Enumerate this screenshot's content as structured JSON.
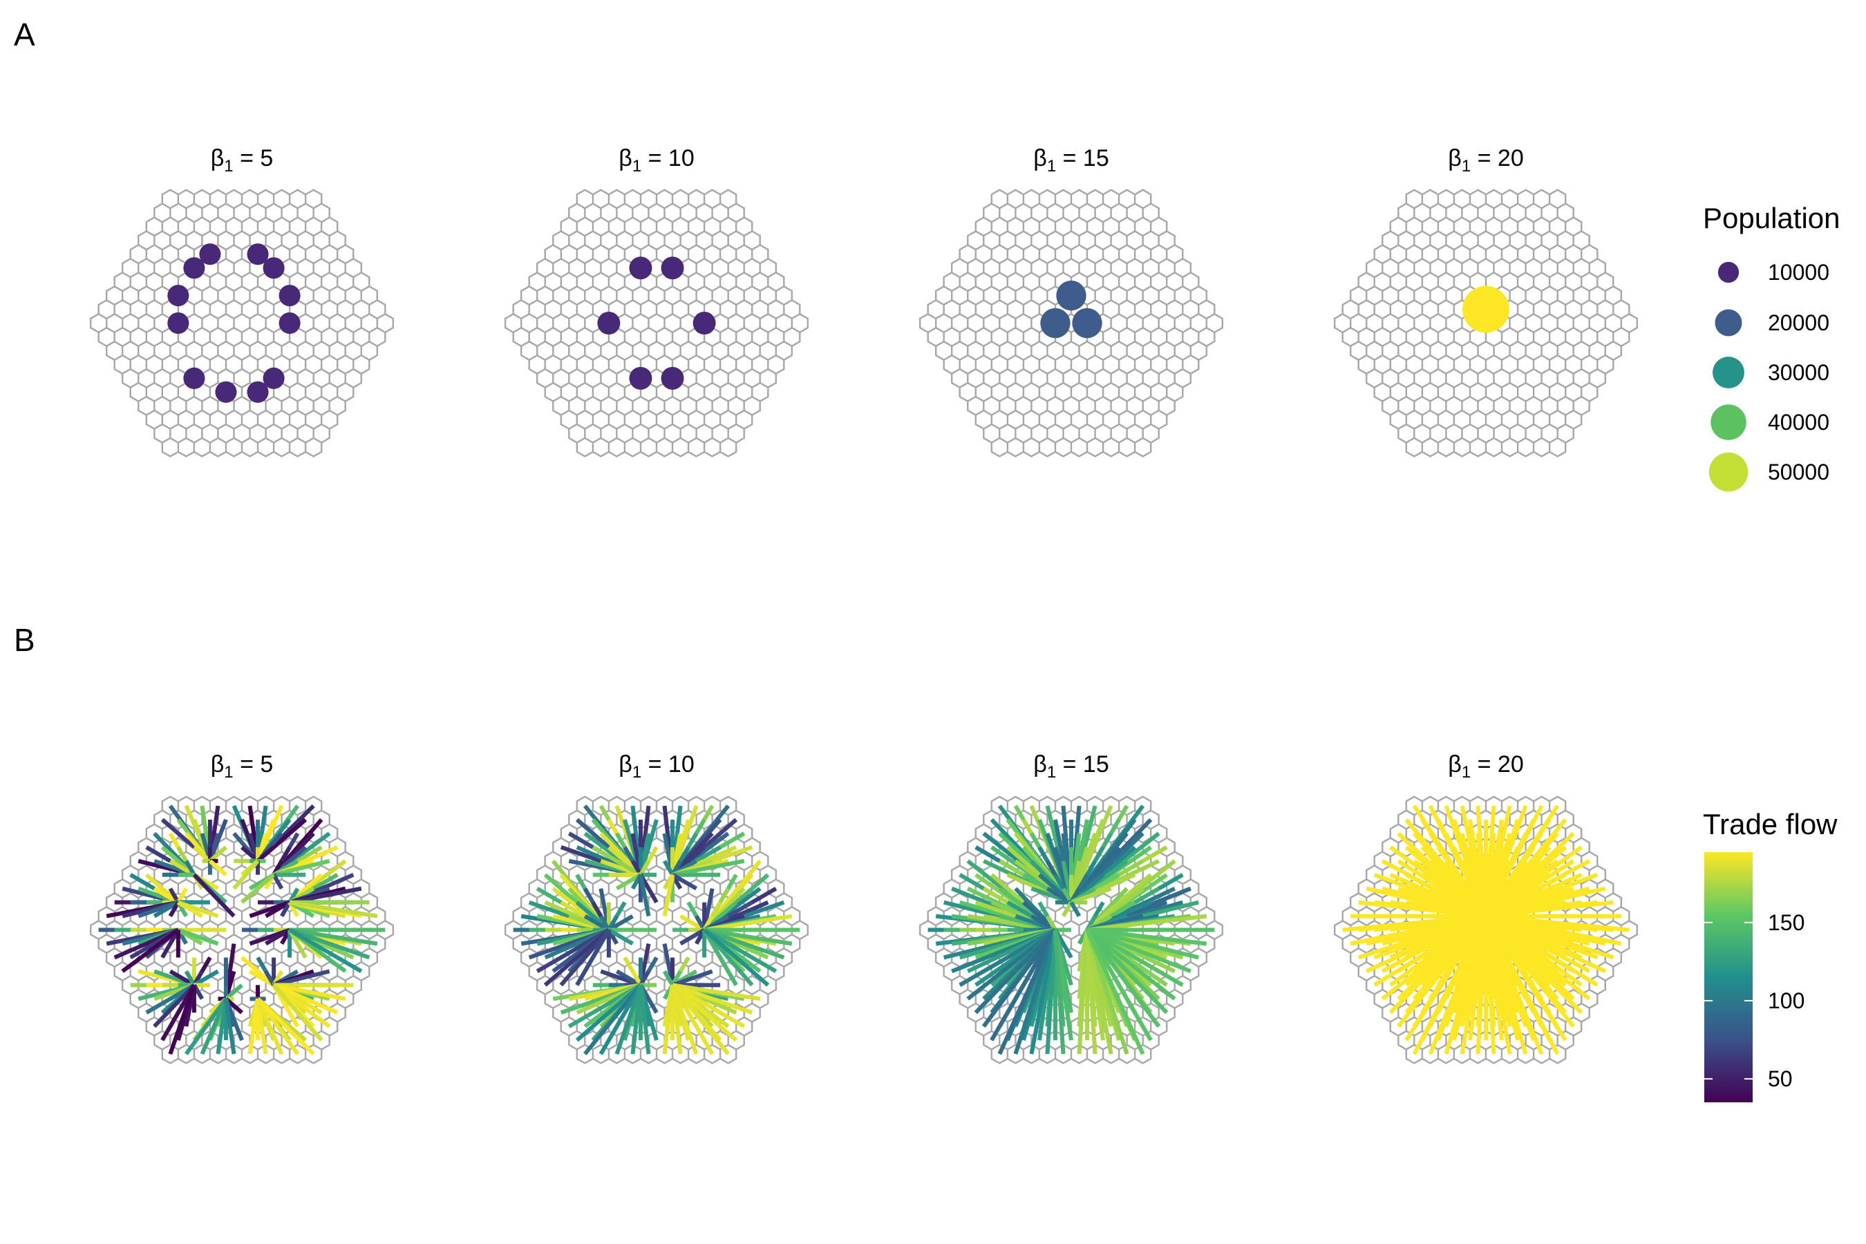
{
  "panels": [
    {
      "label": "A",
      "kind": "population"
    },
    {
      "label": "B",
      "kind": "trade"
    }
  ],
  "facets": [
    {
      "prefix": "β",
      "sub": "1",
      "eq": " = 5"
    },
    {
      "prefix": "β",
      "sub": "1",
      "eq": " = 10"
    },
    {
      "prefix": "β",
      "sub": "1",
      "eq": " = 15"
    },
    {
      "prefix": "β",
      "sub": "1",
      "eq": " = 20"
    }
  ],
  "legend_population": {
    "title": "Population",
    "entries": [
      {
        "label": "10000",
        "value": 10000,
        "color": "#482878"
      },
      {
        "label": "20000",
        "value": 20000,
        "color": "#3e5c8c"
      },
      {
        "label": "30000",
        "value": 30000,
        "color": "#26938a"
      },
      {
        "label": "40000",
        "value": 40000,
        "color": "#5cc15f"
      },
      {
        "label": "50000",
        "value": 50000,
        "color": "#c3de35"
      }
    ]
  },
  "legend_trade": {
    "title": "Trade flow",
    "ticks": [
      {
        "label": "150",
        "value": 150
      },
      {
        "label": "100",
        "value": 100
      },
      {
        "label": "50",
        "value": 50
      }
    ],
    "range": [
      35,
      195
    ],
    "colors": [
      "#440154",
      "#3b528b",
      "#21908d",
      "#5dc863",
      "#fde725"
    ]
  },
  "chart_data": [
    {
      "type": "scatter",
      "panel": "A",
      "grid": "hexagonal lattice, 10 hexes per side",
      "series": [
        {
          "facet": "β1 = 5",
          "population": 8000,
          "points": [
            [
              -2,
              -1
            ],
            [
              1,
              -1
            ],
            [
              -3,
              0
            ],
            [
              2,
              0
            ],
            [
              -4,
              2
            ],
            [
              3,
              2
            ],
            [
              -4,
              4
            ],
            [
              3,
              4
            ],
            [
              -3,
              8
            ],
            [
              2,
              8
            ],
            [
              -1,
              9
            ],
            [
              1,
              9
            ]
          ]
        },
        {
          "facet": "β1 = 10",
          "population": 9500,
          "points": [
            [
              -1,
              0
            ],
            [
              1,
              0
            ],
            [
              -3,
              4
            ],
            [
              3,
              4
            ],
            [
              -1,
              8
            ],
            [
              1,
              8
            ]
          ]
        },
        {
          "facet": "β1 = 15",
          "population": 20000,
          "points": [
            [
              0,
              2
            ],
            [
              -1,
              4
            ],
            [
              1,
              4
            ]
          ]
        },
        {
          "facet": "β1 = 20",
          "population": 60000,
          "points": [
            [
              0,
              3
            ]
          ]
        }
      ]
    },
    {
      "type": "heatmap",
      "panel": "B",
      "value_name": "Trade flow",
      "series": [
        {
          "facet": "β1 = 5",
          "hubs": [
            [
              -2,
              -1
            ],
            [
              1,
              -1
            ],
            [
              -3,
              0
            ],
            [
              2,
              0
            ],
            [
              -4,
              2
            ],
            [
              3,
              2
            ],
            [
              -4,
              4
            ],
            [
              3,
              4
            ],
            [
              -3,
              8
            ],
            [
              2,
              8
            ],
            [
              -1,
              9
            ],
            [
              1,
              9
            ]
          ],
          "flow_range": [
            35,
            195
          ]
        },
        {
          "facet": "β1 = 10",
          "hubs": [
            [
              -1,
              0
            ],
            [
              1,
              0
            ],
            [
              -3,
              4
            ],
            [
              3,
              4
            ],
            [
              -1,
              8
            ],
            [
              1,
              8
            ]
          ],
          "flow_range": [
            60,
            190
          ]
        },
        {
          "facet": "β1 = 15",
          "hubs": [
            [
              0,
              2
            ],
            [
              -1,
              4
            ],
            [
              1,
              4
            ]
          ],
          "flow_range": [
            90,
            175
          ]
        },
        {
          "facet": "β1 = 20",
          "hubs": [
            [
              0,
              3
            ]
          ],
          "flow_range": [
            195,
            195
          ]
        }
      ]
    }
  ]
}
